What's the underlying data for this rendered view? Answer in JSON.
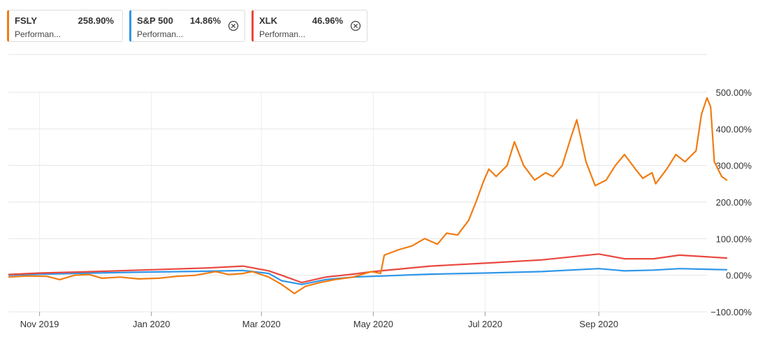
{
  "legend": [
    {
      "symbol": "FSLY",
      "value": "258.90%",
      "subtitle": "Performan...",
      "color": "#f07c12",
      "removable": false
    },
    {
      "symbol": "S&P 500",
      "value": "14.86%",
      "subtitle": "Performan...",
      "color": "#2f96e8",
      "removable": true
    },
    {
      "symbol": "XLK",
      "value": "46.96%",
      "subtitle": "Performan...",
      "color": "#e9483f",
      "removable": true
    }
  ],
  "icons": {
    "remove": "close-circle-icon"
  },
  "chart_data": {
    "type": "line",
    "title": "",
    "xlabel": "",
    "ylabel": "",
    "x_range": [
      "2019-10-15",
      "2020-10-30"
    ],
    "ylim": [
      -100,
      500
    ],
    "y_ticks": [
      -100,
      0,
      100,
      200,
      300,
      400,
      500
    ],
    "y_tick_labels": [
      "−100.00%",
      "0.00%",
      "100.00%",
      "200.00%",
      "300.00%",
      "400.00%",
      "500.00%"
    ],
    "x_ticks": [
      "2019-11-01",
      "2020-01-01",
      "2020-03-01",
      "2020-05-01",
      "2020-07-01",
      "2020-09-01"
    ],
    "x_tick_labels": [
      "Nov 2019",
      "Jan 2020",
      "Mar 2020",
      "May 2020",
      "Jul 2020",
      "Sep 2020"
    ],
    "grid": true,
    "series": [
      {
        "name": "FSLY",
        "color": "#f07c12",
        "points": [
          [
            "2019-10-15",
            -5
          ],
          [
            "2019-10-25",
            -2
          ],
          [
            "2019-11-05",
            -3
          ],
          [
            "2019-11-12",
            -12
          ],
          [
            "2019-11-20",
            0
          ],
          [
            "2019-11-28",
            2
          ],
          [
            "2019-12-05",
            -8
          ],
          [
            "2019-12-15",
            -5
          ],
          [
            "2019-12-25",
            -10
          ],
          [
            "2020-01-05",
            -8
          ],
          [
            "2020-01-15",
            -3
          ],
          [
            "2020-01-25",
            0
          ],
          [
            "2020-02-05",
            10
          ],
          [
            "2020-02-12",
            2
          ],
          [
            "2020-02-20",
            5
          ],
          [
            "2020-02-25",
            10
          ],
          [
            "2020-03-05",
            -5
          ],
          [
            "2020-03-12",
            -25
          ],
          [
            "2020-03-19",
            -50
          ],
          [
            "2020-03-25",
            -30
          ],
          [
            "2020-04-02",
            -20
          ],
          [
            "2020-04-10",
            -12
          ],
          [
            "2020-04-20",
            -5
          ],
          [
            "2020-04-30",
            10
          ],
          [
            "2020-05-05",
            5
          ],
          [
            "2020-05-07",
            55
          ],
          [
            "2020-05-15",
            70
          ],
          [
            "2020-05-22",
            80
          ],
          [
            "2020-05-29",
            100
          ],
          [
            "2020-06-05",
            85
          ],
          [
            "2020-06-10",
            115
          ],
          [
            "2020-06-16",
            110
          ],
          [
            "2020-06-22",
            150
          ],
          [
            "2020-06-26",
            200
          ],
          [
            "2020-06-30",
            255
          ],
          [
            "2020-07-03",
            290
          ],
          [
            "2020-07-07",
            270
          ],
          [
            "2020-07-13",
            300
          ],
          [
            "2020-07-17",
            365
          ],
          [
            "2020-07-22",
            300
          ],
          [
            "2020-07-28",
            260
          ],
          [
            "2020-08-03",
            280
          ],
          [
            "2020-08-07",
            270
          ],
          [
            "2020-08-12",
            300
          ],
          [
            "2020-08-17",
            380
          ],
          [
            "2020-08-20",
            425
          ],
          [
            "2020-08-25",
            310
          ],
          [
            "2020-08-30",
            245
          ],
          [
            "2020-09-05",
            260
          ],
          [
            "2020-09-10",
            300
          ],
          [
            "2020-09-15",
            330
          ],
          [
            "2020-09-21",
            290
          ],
          [
            "2020-09-25",
            265
          ],
          [
            "2020-09-30",
            280
          ],
          [
            "2020-10-02",
            250
          ],
          [
            "2020-10-08",
            290
          ],
          [
            "2020-10-13",
            330
          ],
          [
            "2020-10-18",
            310
          ],
          [
            "2020-10-24",
            340
          ],
          [
            "2020-10-27",
            440
          ],
          [
            "2020-10-29",
            470
          ],
          [
            "2020-10-30",
            485
          ],
          [
            "2020-11-01",
            460
          ],
          [
            "2020-11-03",
            310
          ],
          [
            "2020-11-07",
            270
          ],
          [
            "2020-11-10",
            259
          ]
        ]
      },
      {
        "name": "S&P 500",
        "color": "#2f96e8",
        "points": [
          [
            "2019-10-15",
            0
          ],
          [
            "2019-11-01",
            3
          ],
          [
            "2019-12-01",
            6
          ],
          [
            "2020-01-01",
            9
          ],
          [
            "2020-02-01",
            11
          ],
          [
            "2020-02-20",
            13
          ],
          [
            "2020-03-05",
            5
          ],
          [
            "2020-03-12",
            -15
          ],
          [
            "2020-03-23",
            -25
          ],
          [
            "2020-04-05",
            -12
          ],
          [
            "2020-04-20",
            -5
          ],
          [
            "2020-05-01",
            -3
          ],
          [
            "2020-06-01",
            3
          ],
          [
            "2020-07-01",
            6
          ],
          [
            "2020-08-01",
            10
          ],
          [
            "2020-09-01",
            18
          ],
          [
            "2020-09-15",
            12
          ],
          [
            "2020-10-01",
            14
          ],
          [
            "2020-10-15",
            18
          ],
          [
            "2020-11-10",
            15
          ]
        ]
      },
      {
        "name": "XLK",
        "color": "#e9483f",
        "points": [
          [
            "2019-10-15",
            2
          ],
          [
            "2019-11-01",
            6
          ],
          [
            "2019-12-01",
            10
          ],
          [
            "2020-01-01",
            15
          ],
          [
            "2020-02-01",
            20
          ],
          [
            "2020-02-20",
            25
          ],
          [
            "2020-03-05",
            12
          ],
          [
            "2020-03-12",
            0
          ],
          [
            "2020-03-23",
            -20
          ],
          [
            "2020-04-05",
            -5
          ],
          [
            "2020-04-20",
            3
          ],
          [
            "2020-05-01",
            10
          ],
          [
            "2020-06-01",
            25
          ],
          [
            "2020-07-01",
            33
          ],
          [
            "2020-08-01",
            42
          ],
          [
            "2020-09-01",
            58
          ],
          [
            "2020-09-15",
            45
          ],
          [
            "2020-10-01",
            45
          ],
          [
            "2020-10-15",
            55
          ],
          [
            "2020-11-10",
            47
          ]
        ]
      }
    ]
  }
}
